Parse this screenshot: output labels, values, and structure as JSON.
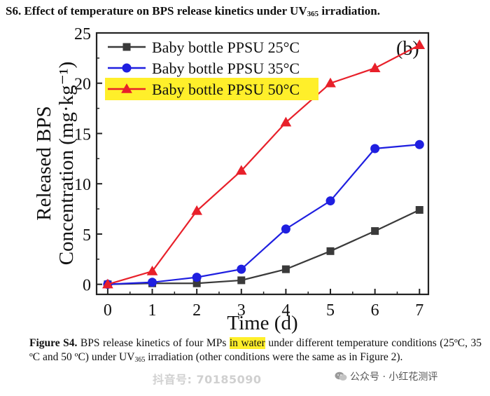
{
  "heading": {
    "prefix": "S6. Effect of temperature on BPS release kinetics under UV",
    "sub": "365",
    "suffix": " irradiation."
  },
  "chart_data": {
    "type": "line",
    "panel_label": "(b)",
    "xlabel": "Time (d)",
    "ylabel_line1": "Released BPS",
    "ylabel_line2": "Concentration (mg·kg⁻¹)",
    "xlim": [
      -0.25,
      7.2
    ],
    "ylim": [
      -1,
      25
    ],
    "xticks": [
      "0",
      "1",
      "2",
      "3",
      "4",
      "5",
      "6",
      "7"
    ],
    "yticks": [
      "0",
      "5",
      "10",
      "15",
      "20",
      "25"
    ],
    "x": [
      0,
      1,
      2,
      3,
      4,
      5,
      6,
      7
    ],
    "legend_position": "top-left",
    "series": [
      {
        "name": "Baby bottle PPSU 25°C",
        "color": "#3a3a3a",
        "marker": "square",
        "values": [
          0,
          0.1,
          0.1,
          0.4,
          1.5,
          3.3,
          5.3,
          7.4
        ]
      },
      {
        "name": "Baby bottle PPSU 35°C",
        "color": "#1f1fe0",
        "marker": "circle",
        "values": [
          0,
          0.2,
          0.7,
          1.5,
          5.5,
          8.3,
          13.5,
          13.9
        ]
      },
      {
        "name": "Baby bottle PPSU 50°C",
        "color": "#e8202a",
        "marker": "triangle",
        "values": [
          0,
          1.3,
          7.3,
          11.3,
          16.1,
          20.0,
          21.5,
          23.8
        ],
        "highlight": "#ffef2a"
      }
    ]
  },
  "caption": {
    "label": "Figure S4.",
    "part1": " BPS release kinetics of four MPs ",
    "highlight": "in water",
    "part2": " under different temperature conditions (25ºC, 35 ºC and 50 ºC) under UV",
    "sub": "365",
    "part3": " irradiation (other conditions were the same as in Figure 2)."
  },
  "watermark": "抖音号: 70185090",
  "source": "公众号 · 小红花测评"
}
